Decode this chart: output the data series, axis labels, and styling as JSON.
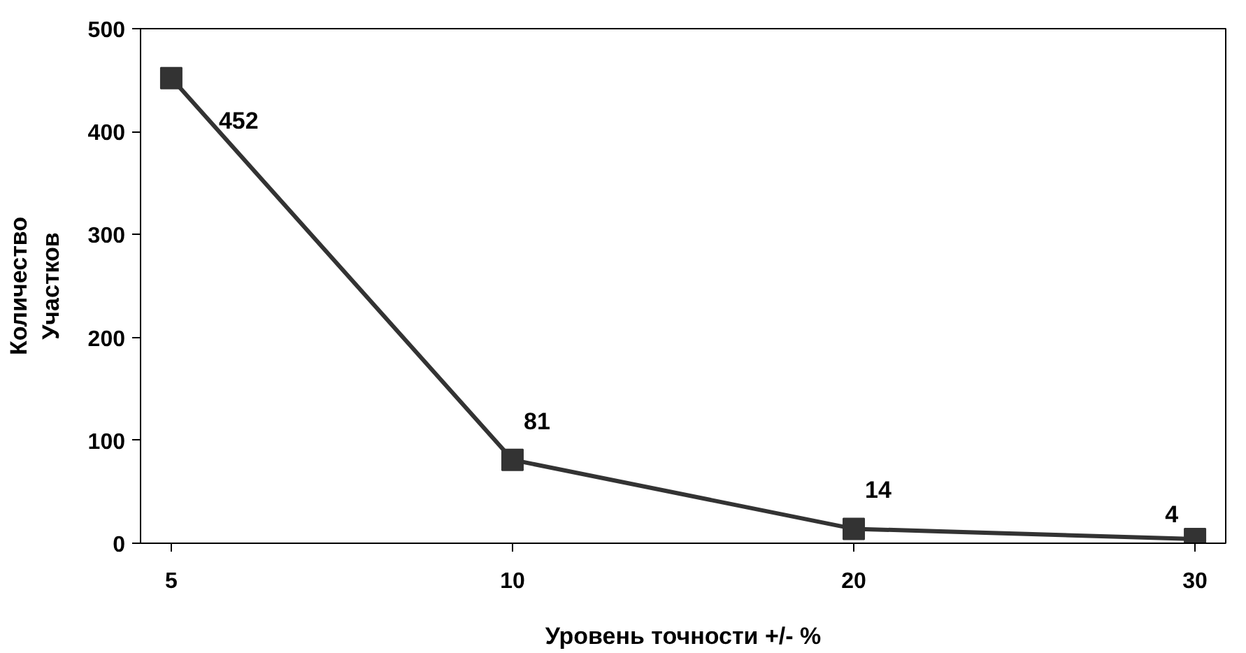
{
  "chart_data": {
    "type": "line",
    "xlabel": "Уровень точности +/- %",
    "ylabel": "Количество\nУчастков",
    "categories": [
      "5",
      "10",
      "20",
      "30"
    ],
    "series": [
      {
        "color": "#333333",
        "values": [
          452,
          81,
          14,
          4
        ]
      }
    ],
    "ylim": [
      0,
      500
    ],
    "yticks": [
      0,
      100,
      200,
      300,
      400,
      500
    ],
    "grid": false,
    "marker": "square",
    "line_style": "solid",
    "data_labels": true
  }
}
